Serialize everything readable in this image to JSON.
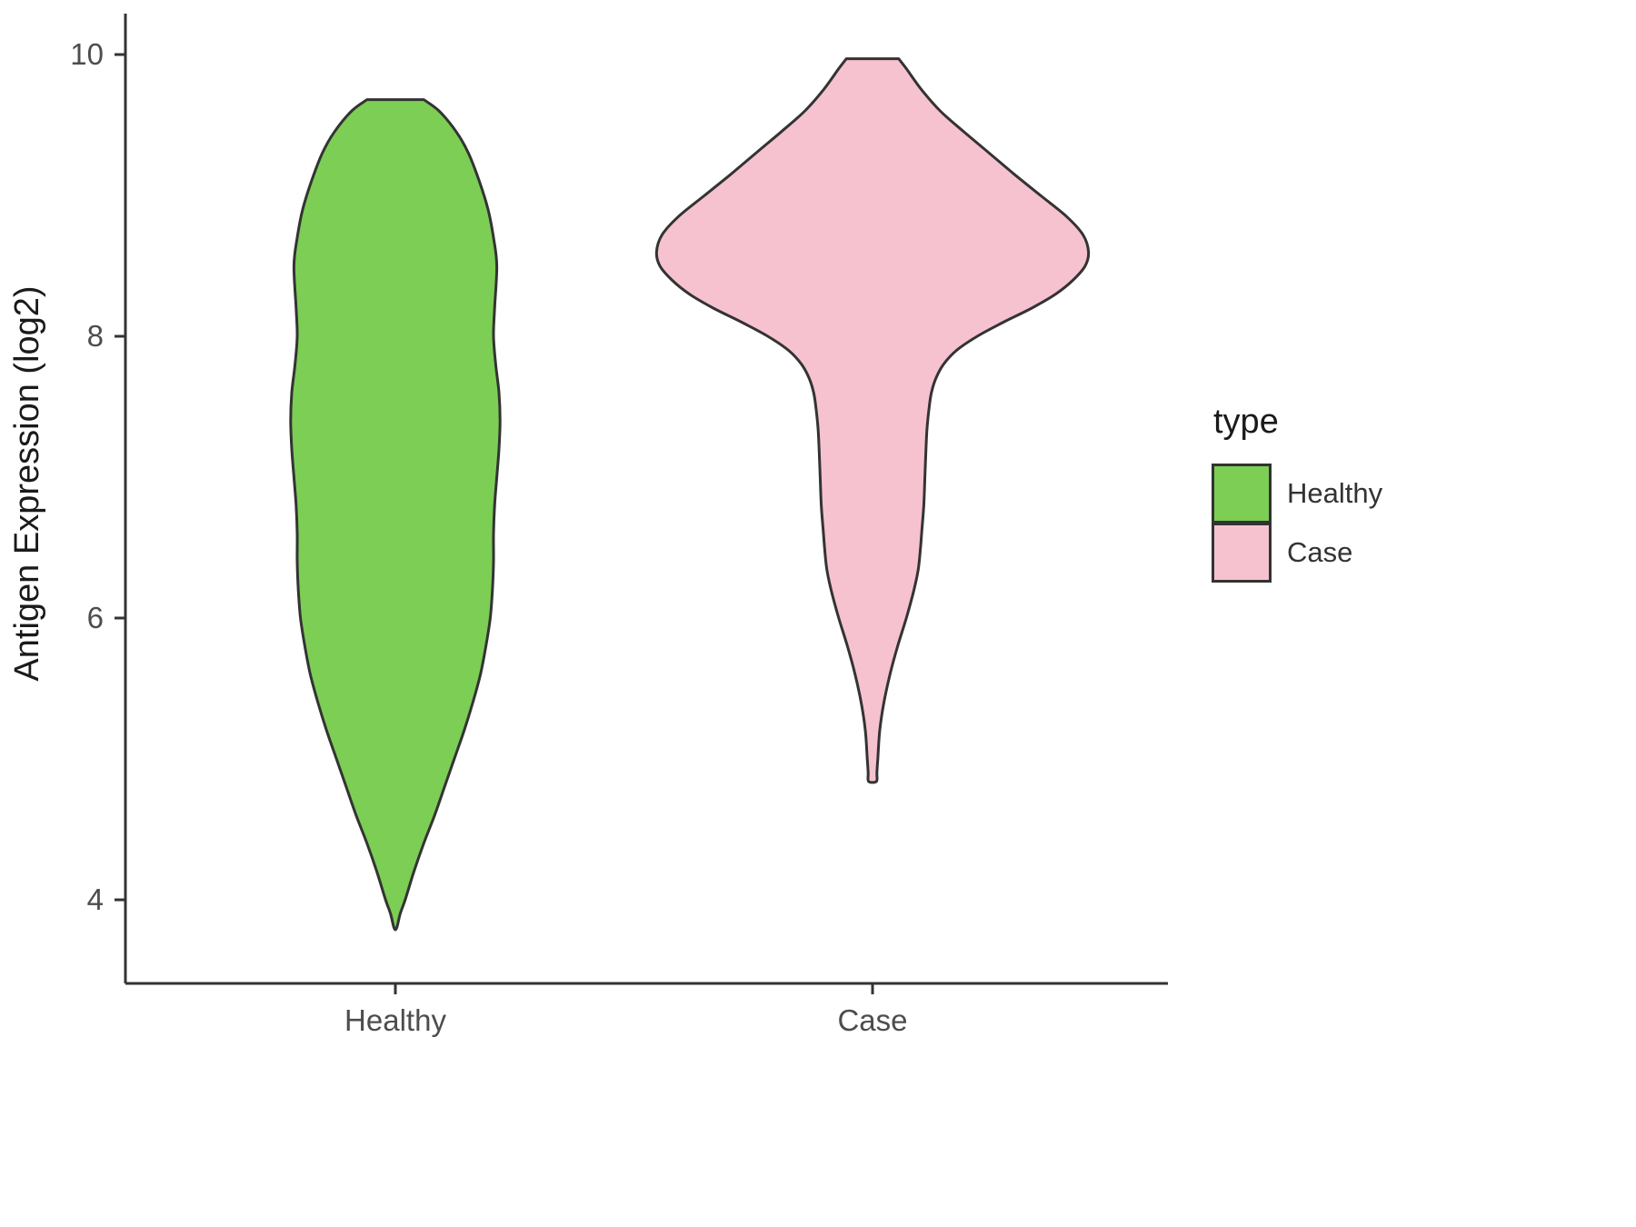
{
  "figure": {
    "background": "#ffffff",
    "outline_color": "#333333",
    "axis_color": "#333333",
    "tick_text_color": "#4d4d4d",
    "title_text_color": "#1a1a1a"
  },
  "axes": {
    "y_title": "Antigen Expression (log2)",
    "y_ticks": [
      {
        "value": 10,
        "label": "10"
      },
      {
        "value": 8,
        "label": "8"
      },
      {
        "value": 6,
        "label": "6"
      },
      {
        "value": 4,
        "label": "4"
      }
    ],
    "x_categories": [
      "Healthy",
      "Case"
    ]
  },
  "legend": {
    "title": "type",
    "items": [
      {
        "label": "Healthy",
        "color": "#7CCE55"
      },
      {
        "label": "Case",
        "color": "#F6C2CF"
      }
    ]
  },
  "chart_data": {
    "type": "violin",
    "title": "",
    "xlabel": "",
    "ylabel": "Antigen Expression (log2)",
    "categories": [
      "Healthy",
      "Case"
    ],
    "ylim": [
      3.4,
      10.3
    ],
    "yticks": [
      4,
      6,
      8,
      10
    ],
    "grid": false,
    "legend_position": "right",
    "legend_title": "type",
    "series": [
      {
        "name": "Healthy",
        "fill": "#7CCE55",
        "outline": "#333333",
        "y_range": [
          3.8,
          9.68
        ],
        "profile": [
          [
            9.68,
            0.13
          ],
          [
            9.6,
            0.2
          ],
          [
            9.45,
            0.28
          ],
          [
            9.3,
            0.335
          ],
          [
            9.1,
            0.385
          ],
          [
            8.9,
            0.425
          ],
          [
            8.7,
            0.45
          ],
          [
            8.5,
            0.465
          ],
          [
            8.2,
            0.455
          ],
          [
            8.0,
            0.45
          ],
          [
            7.8,
            0.46
          ],
          [
            7.6,
            0.475
          ],
          [
            7.4,
            0.48
          ],
          [
            7.2,
            0.475
          ],
          [
            7.0,
            0.465
          ],
          [
            6.8,
            0.455
          ],
          [
            6.6,
            0.45
          ],
          [
            6.4,
            0.45
          ],
          [
            6.2,
            0.445
          ],
          [
            6.0,
            0.435
          ],
          [
            5.8,
            0.415
          ],
          [
            5.6,
            0.39
          ],
          [
            5.4,
            0.355
          ],
          [
            5.2,
            0.315
          ],
          [
            5.0,
            0.27
          ],
          [
            4.8,
            0.225
          ],
          [
            4.6,
            0.18
          ],
          [
            4.4,
            0.13
          ],
          [
            4.2,
            0.085
          ],
          [
            4.0,
            0.045
          ],
          [
            3.9,
            0.022
          ],
          [
            3.8,
            0.006
          ]
        ]
      },
      {
        "name": "Case",
        "fill": "#F6C2CF",
        "outline": "#333333",
        "y_range": [
          4.84,
          9.97
        ],
        "profile": [
          [
            9.97,
            0.12
          ],
          [
            9.9,
            0.155
          ],
          [
            9.75,
            0.225
          ],
          [
            9.6,
            0.31
          ],
          [
            9.45,
            0.42
          ],
          [
            9.3,
            0.535
          ],
          [
            9.15,
            0.65
          ],
          [
            9.0,
            0.77
          ],
          [
            8.85,
            0.89
          ],
          [
            8.72,
            0.965
          ],
          [
            8.6,
            0.99
          ],
          [
            8.5,
            0.975
          ],
          [
            8.4,
            0.92
          ],
          [
            8.3,
            0.84
          ],
          [
            8.2,
            0.73
          ],
          [
            8.1,
            0.6
          ],
          [
            8.0,
            0.48
          ],
          [
            7.9,
            0.385
          ],
          [
            7.8,
            0.325
          ],
          [
            7.7,
            0.29
          ],
          [
            7.6,
            0.27
          ],
          [
            7.5,
            0.26
          ],
          [
            7.35,
            0.25
          ],
          [
            7.2,
            0.245
          ],
          [
            7.0,
            0.24
          ],
          [
            6.8,
            0.235
          ],
          [
            6.6,
            0.225
          ],
          [
            6.5,
            0.22
          ],
          [
            6.35,
            0.21
          ],
          [
            6.2,
            0.19
          ],
          [
            6.0,
            0.155
          ],
          [
            5.8,
            0.115
          ],
          [
            5.6,
            0.08
          ],
          [
            5.4,
            0.052
          ],
          [
            5.2,
            0.033
          ],
          [
            5.0,
            0.024
          ],
          [
            4.9,
            0.02
          ],
          [
            4.84,
            0.018
          ]
        ]
      }
    ]
  }
}
